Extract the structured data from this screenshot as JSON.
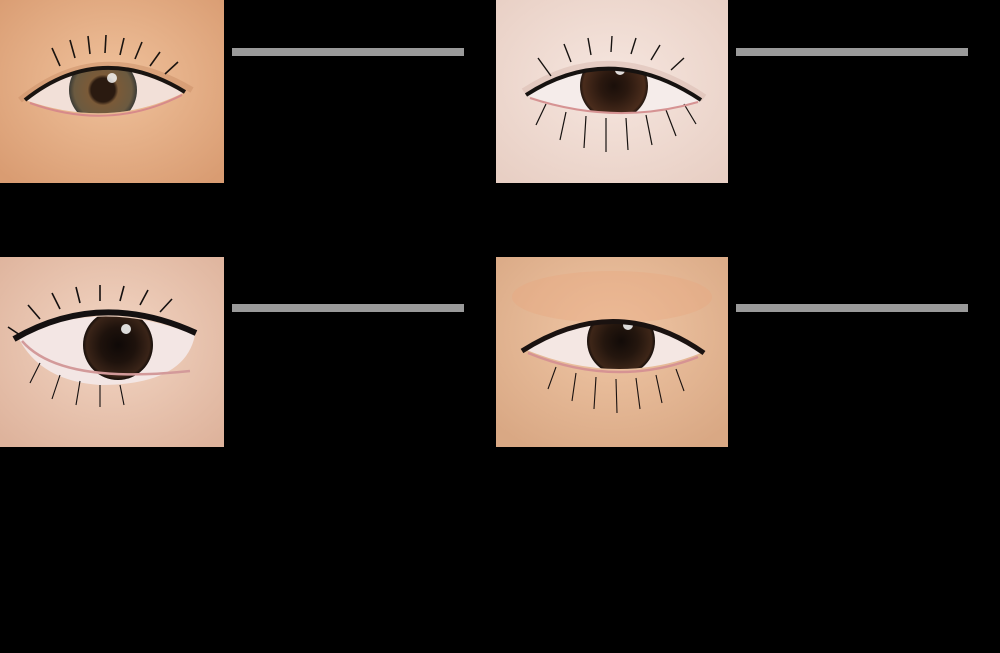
{
  "grid": {
    "items": [
      {
        "subject": "eye-photo-1",
        "skin": "#e8b58e",
        "iris": "#6b4a30",
        "lash": "#1a1410",
        "line_color": "#9a9a9a"
      },
      {
        "subject": "eye-photo-2",
        "skin": "#f1dcd3",
        "iris": "#3a2418",
        "lash": "#161210",
        "line_color": "#9a9a9a"
      },
      {
        "subject": "eye-photo-3",
        "skin": "#eccbb6",
        "iris": "#2a1a12",
        "lash": "#141010",
        "line_color": "#9a9a9a"
      },
      {
        "subject": "eye-photo-4",
        "skin": "#e5b998",
        "iris": "#2e1e14",
        "lash": "#1a1210",
        "line_color": "#9a9a9a"
      }
    ]
  }
}
